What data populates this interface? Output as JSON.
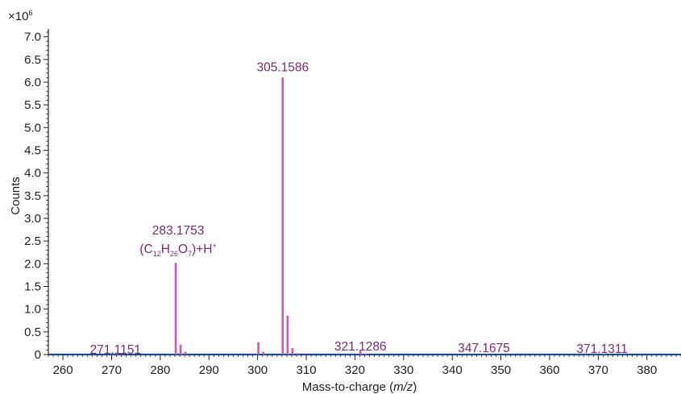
{
  "chart_data": {
    "type": "bar",
    "multiplier_label": "×10",
    "multiplier_exponent": "6",
    "xlabel_prefix": "Mass-to-charge (",
    "xlabel_italic": "m/z",
    "xlabel_suffix": ")",
    "ylabel": "Counts",
    "xlim": [
      257,
      387
    ],
    "ylim": [
      0,
      7.1
    ],
    "x_ticks": [
      260,
      270,
      280,
      290,
      300,
      310,
      320,
      330,
      340,
      350,
      360,
      370,
      380
    ],
    "y_ticks": [
      0,
      0.5,
      1.0,
      1.5,
      2.0,
      2.5,
      3.0,
      3.5,
      4.0,
      4.5,
      5.0,
      5.5,
      6.0,
      6.5,
      7.0
    ],
    "grid": false,
    "colors": {
      "peaks": "#cc57b8",
      "labels": "#7b2a78",
      "axis": "#222222",
      "baseline": "#1f4fa0"
    },
    "peaks": [
      {
        "mz": 271.1151,
        "intensity": 0.02
      },
      {
        "mz": 283.1753,
        "intensity": 2.02
      },
      {
        "mz": 284.18,
        "intensity": 0.22
      },
      {
        "mz": 285.18,
        "intensity": 0.06
      },
      {
        "mz": 300.15,
        "intensity": 0.27
      },
      {
        "mz": 301.15,
        "intensity": 0.06
      },
      {
        "mz": 305.1586,
        "intensity": 6.1
      },
      {
        "mz": 306.16,
        "intensity": 0.86
      },
      {
        "mz": 307.16,
        "intensity": 0.14
      },
      {
        "mz": 308.16,
        "intensity": 0.03
      },
      {
        "mz": 321.1286,
        "intensity": 0.09
      },
      {
        "mz": 322.13,
        "intensity": 0.02
      },
      {
        "mz": 347.1675,
        "intensity": 0.01
      },
      {
        "mz": 371.1311,
        "intensity": 0.02
      }
    ],
    "peak_labels": [
      "271.1151",
      "283.1753",
      "305.1586",
      "321.1286",
      "347.1675",
      "371.1311"
    ],
    "formula": {
      "open": "(C",
      "c_sub": "12",
      "h": "H",
      "h_sub": "26",
      "o": "O",
      "o_sub": "7",
      "close": ")+H",
      "charge": "+"
    }
  }
}
